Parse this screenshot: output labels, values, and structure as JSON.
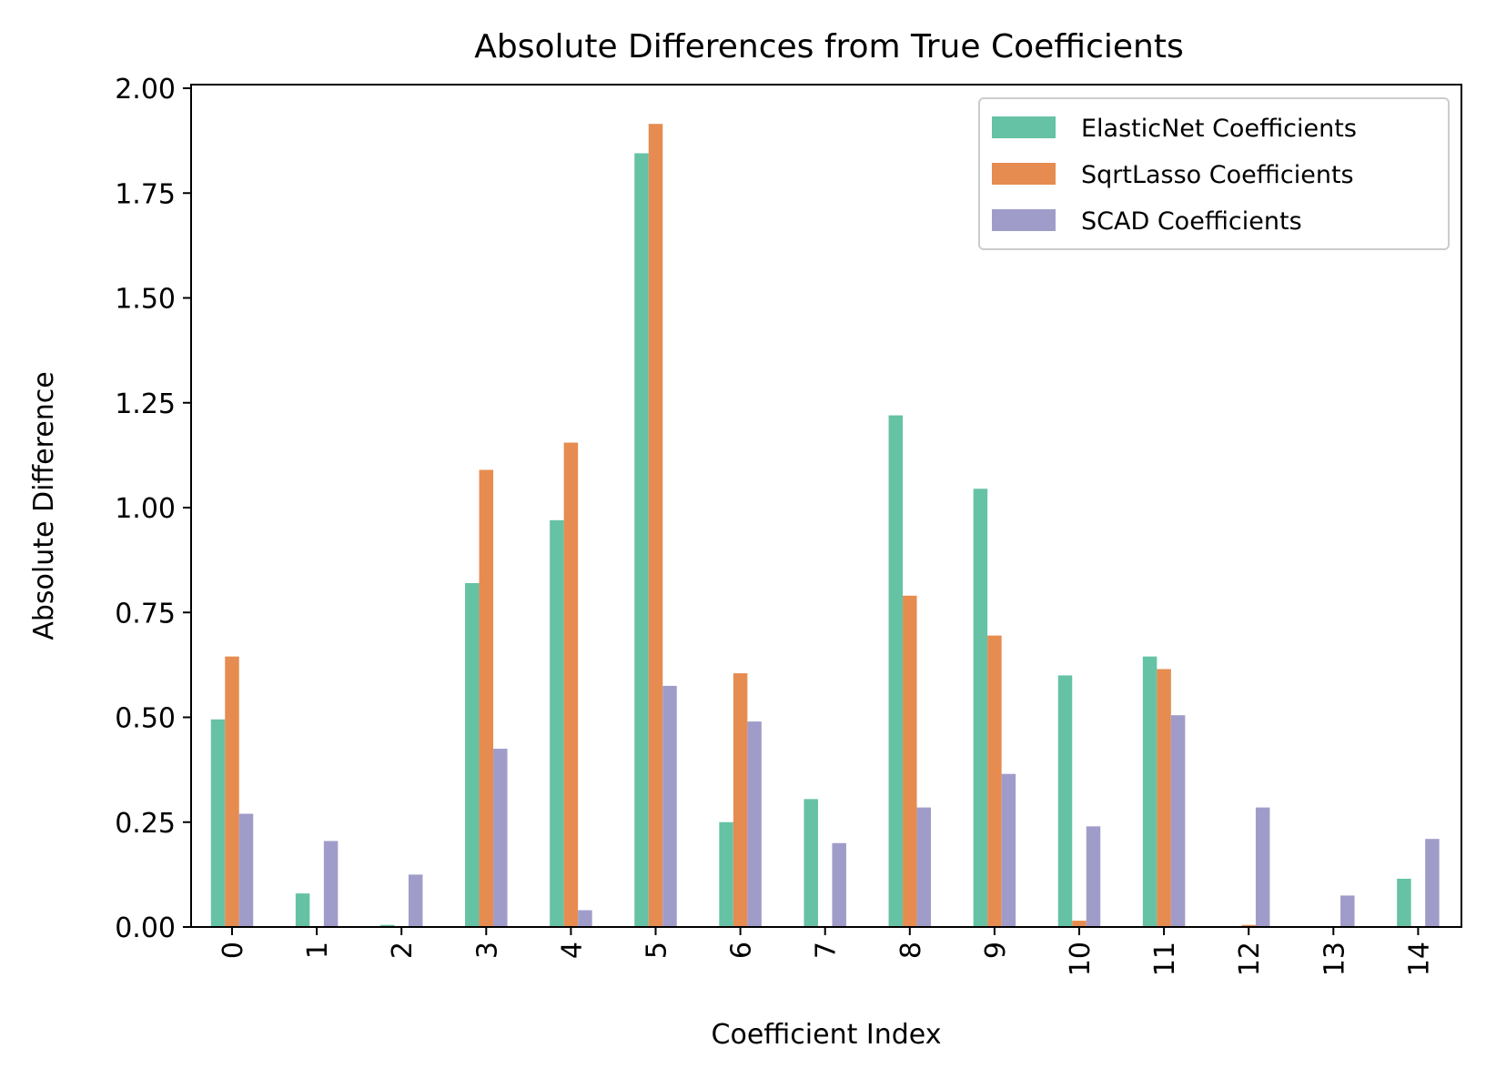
{
  "chart_data": {
    "type": "bar",
    "title": "Absolute Differences from True Coefficients",
    "xlabel": "Coefficient Index",
    "ylabel": "Absolute Difference",
    "ylim": [
      0,
      2.0
    ],
    "yticks": [
      "0.00",
      "0.25",
      "0.50",
      "0.75",
      "1.00",
      "1.25",
      "1.50",
      "1.75",
      "2.00"
    ],
    "categories": [
      "0",
      "1",
      "2",
      "3",
      "4",
      "5",
      "6",
      "7",
      "8",
      "9",
      "10",
      "11",
      "12",
      "13",
      "14"
    ],
    "legend_position": "top-right",
    "grid": false,
    "series": [
      {
        "name": "ElasticNet Coefficients",
        "color": "#66c2a5",
        "values": [
          0.495,
          0.08,
          0.005,
          0.82,
          0.97,
          1.845,
          0.25,
          0.305,
          1.22,
          1.045,
          0.6,
          0.645,
          0.0,
          0.0,
          0.115
        ]
      },
      {
        "name": "SqrtLasso Coefficients",
        "color": "#e68c50",
        "values": [
          0.645,
          0.0,
          0.0,
          1.09,
          1.155,
          1.915,
          0.605,
          0.0,
          0.79,
          0.695,
          0.015,
          0.615,
          0.005,
          0.0,
          0.0
        ]
      },
      {
        "name": "SCAD Coefficients",
        "color": "#a09cca",
        "values": [
          0.27,
          0.205,
          0.125,
          0.425,
          0.04,
          0.575,
          0.49,
          0.2,
          0.285,
          0.365,
          0.24,
          0.505,
          0.285,
          0.075,
          0.21
        ]
      }
    ]
  }
}
